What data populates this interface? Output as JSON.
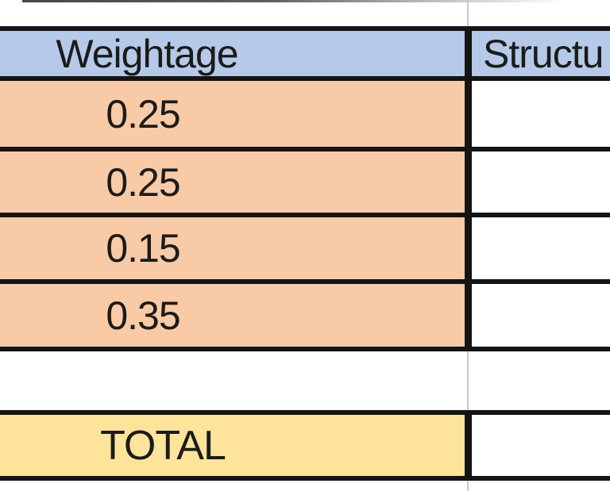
{
  "table": {
    "headers": {
      "weightage": "Weightage",
      "structure": "Structu"
    },
    "weightage_values": [
      "0.25",
      "0.25",
      "0.15",
      "0.35"
    ],
    "total_label": "TOTAL"
  },
  "colors": {
    "header_fill": "#b5c9e8",
    "weightage_fill": "#f9caa6",
    "total_fill": "#fde49a",
    "cell_border": "#141414",
    "gridline": "#c9c9c9",
    "text": "#1b1b1b"
  }
}
